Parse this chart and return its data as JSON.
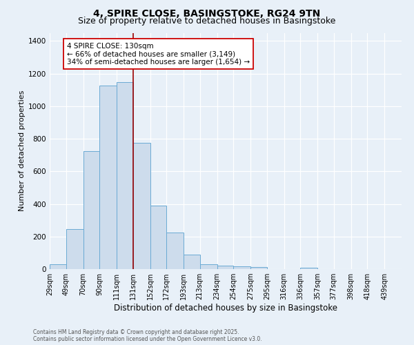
{
  "title_line1": "4, SPIRE CLOSE, BASINGSTOKE, RG24 9TN",
  "title_line2": "Size of property relative to detached houses in Basingstoke",
  "xlabel": "Distribution of detached houses by size in Basingstoke",
  "ylabel": "Number of detached properties",
  "bar_color": "#cddcec",
  "bar_edge_color": "#6aaad4",
  "bar_left_edges": [
    29,
    49,
    70,
    90,
    111,
    131,
    152,
    172,
    193,
    213,
    234,
    254,
    275,
    295,
    316,
    336,
    357,
    377,
    398,
    418
  ],
  "bar_widths": [
    20,
    21,
    20,
    21,
    20,
    21,
    20,
    21,
    20,
    21,
    20,
    21,
    20,
    21,
    20,
    21,
    20,
    21,
    20,
    21
  ],
  "bar_heights": [
    28,
    246,
    722,
    1128,
    1148,
    775,
    388,
    225,
    90,
    28,
    20,
    15,
    13,
    0,
    0,
    10,
    0,
    0,
    0,
    0
  ],
  "tick_labels": [
    "29sqm",
    "49sqm",
    "70sqm",
    "90sqm",
    "111sqm",
    "131sqm",
    "152sqm",
    "172sqm",
    "193sqm",
    "213sqm",
    "234sqm",
    "254sqm",
    "275sqm",
    "295sqm",
    "316sqm",
    "336sqm",
    "357sqm",
    "377sqm",
    "398sqm",
    "418sqm",
    "439sqm"
  ],
  "tick_positions": [
    29,
    49,
    70,
    90,
    111,
    131,
    152,
    172,
    193,
    213,
    234,
    254,
    275,
    295,
    316,
    336,
    357,
    377,
    398,
    418,
    439
  ],
  "vline_x": 131,
  "vline_color": "#990000",
  "annotation_text": "4 SPIRE CLOSE: 130sqm\n← 66% of detached houses are smaller (3,149)\n34% of semi-detached houses are larger (1,654) →",
  "ylim": [
    0,
    1450
  ],
  "yticks": [
    0,
    200,
    400,
    600,
    800,
    1000,
    1200,
    1400
  ],
  "bg_color": "#e8f0f8",
  "plot_bg_color": "#e8f0f8",
  "footnote": "Contains HM Land Registry data © Crown copyright and database right 2025.\nContains public sector information licensed under the Open Government Licence v3.0.",
  "grid_color": "#ffffff",
  "title_fontsize": 10,
  "subtitle_fontsize": 9,
  "tick_fontsize": 7,
  "ylabel_fontsize": 8,
  "xlabel_fontsize": 8.5,
  "footnote_fontsize": 5.5,
  "annotation_fontsize": 7.5
}
